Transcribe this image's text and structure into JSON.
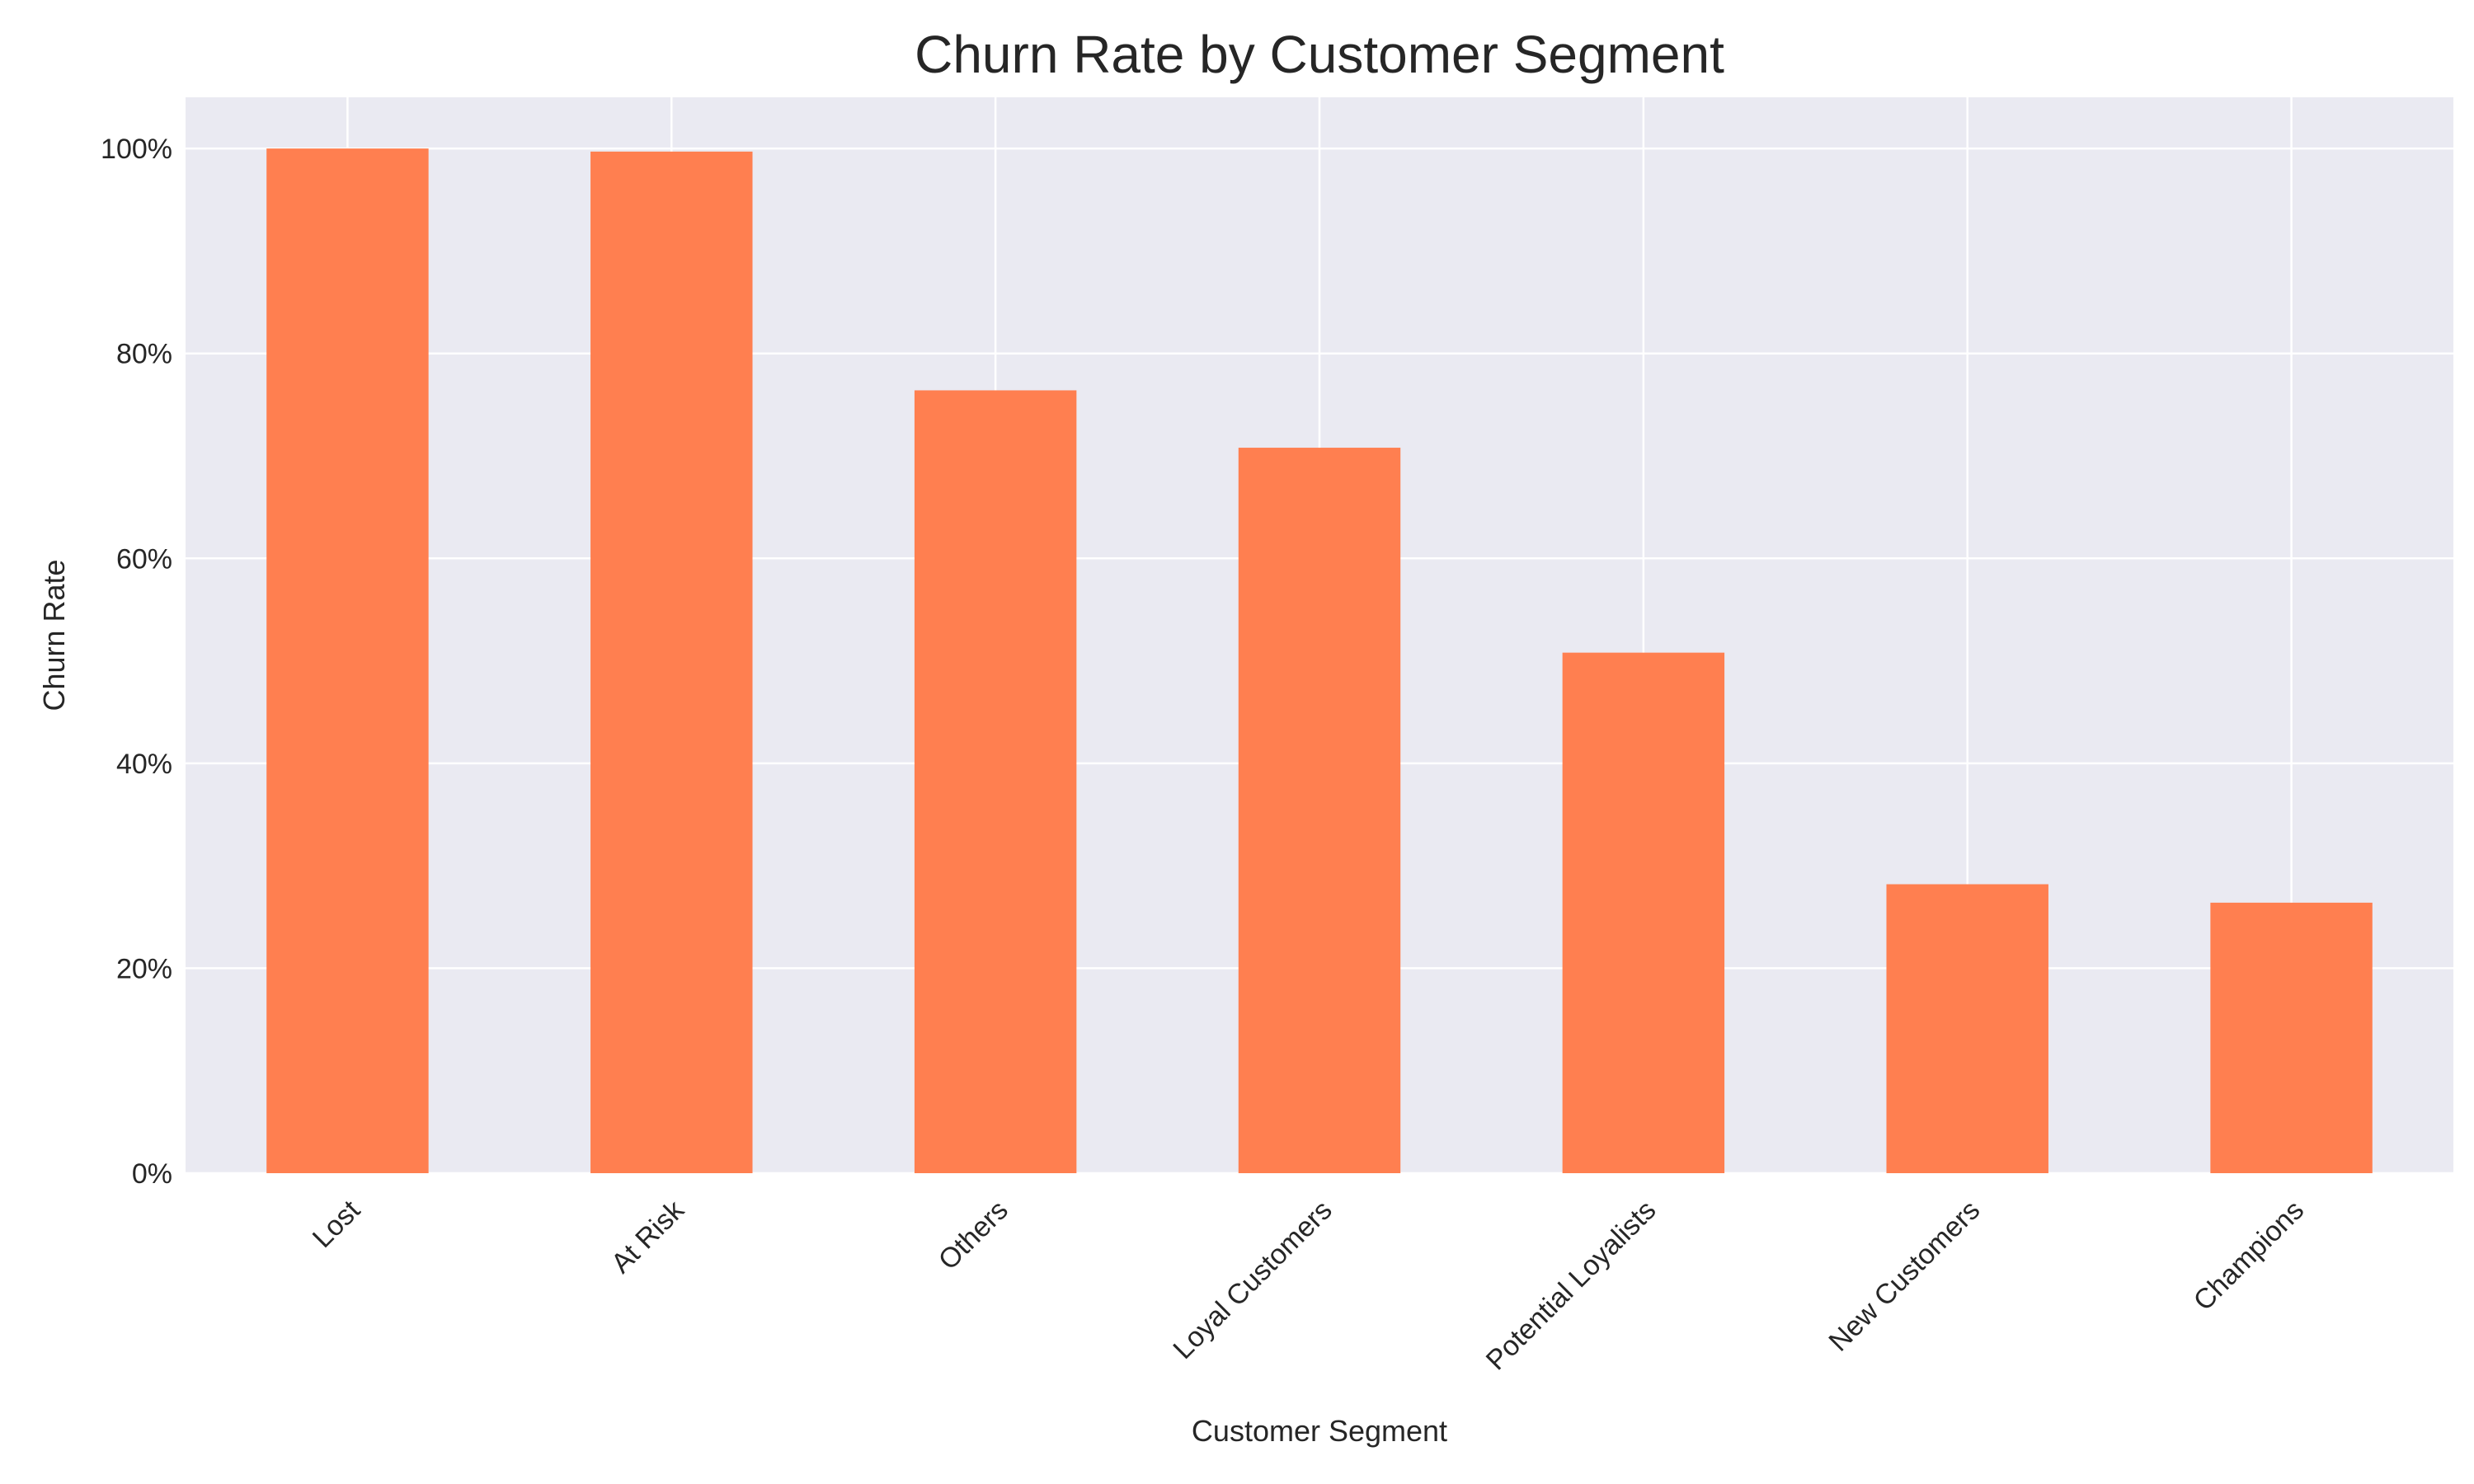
{
  "chart_data": {
    "type": "bar",
    "title": "Churn Rate by Customer Segment",
    "xlabel": "Customer Segment",
    "ylabel": "Churn Rate",
    "categories": [
      "Lost",
      "At Risk",
      "Others",
      "Loyal Customers",
      "Potential Loyalists",
      "New Customers",
      "Champions"
    ],
    "values": [
      1.0,
      0.997,
      0.764,
      0.708,
      0.508,
      0.282,
      0.264
    ],
    "ylim": [
      0,
      1.05
    ],
    "yticks": [
      0,
      0.2,
      0.4,
      0.6,
      0.8,
      1.0
    ],
    "ytick_labels": [
      "0%",
      "20%",
      "40%",
      "60%",
      "80%",
      "100%"
    ],
    "grid": true,
    "legend": "none",
    "colors": {
      "bar": "#ff7f50",
      "plot_background": "#eaeaf2",
      "grid": "#ffffff",
      "text": "#262626"
    }
  }
}
